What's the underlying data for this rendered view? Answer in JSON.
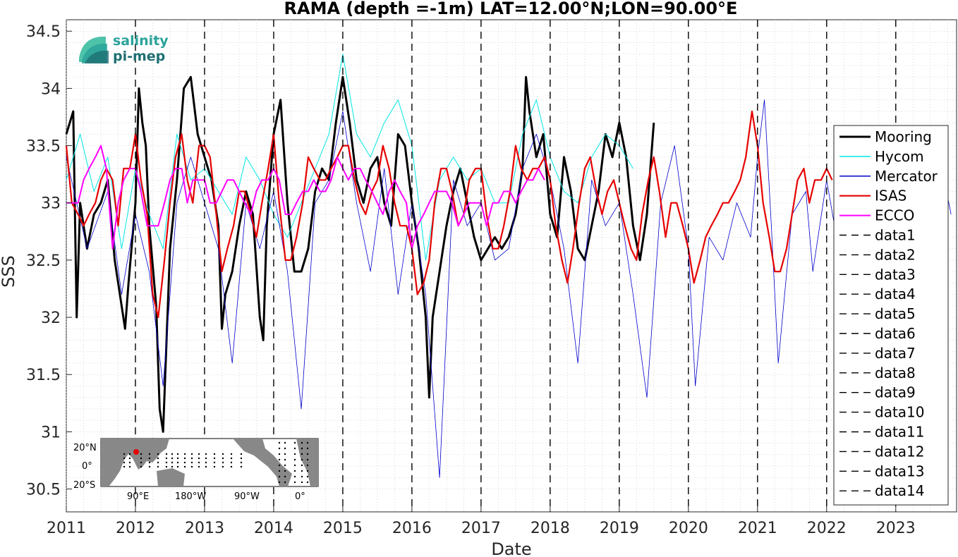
{
  "chart_data": {
    "type": "line",
    "title": "RAMA (depth =-1m) LAT=12.00°N;LON=90.00°E",
    "xlabel": "Date",
    "ylabel": "SSS",
    "xlim": [
      2011.0,
      2023.88
    ],
    "ylim": [
      30.3,
      34.6
    ],
    "x_ticks": [
      "2011",
      "2012",
      "2013",
      "2014",
      "2015",
      "2016",
      "2017",
      "2018",
      "2019",
      "2020",
      "2021",
      "2022",
      "2023"
    ],
    "y_ticks": [
      "30.5",
      "31",
      "31.5",
      "32",
      "32.5",
      "33",
      "33.5",
      "34",
      "34.5"
    ],
    "grid": "minor dotted",
    "legend_position": "right",
    "series": [
      {
        "name": "Mooring",
        "color": "#000000",
        "width": 3,
        "x": [
          2011.0,
          2011.1,
          2011.15,
          2011.2,
          2011.3,
          2011.4,
          2011.5,
          2011.6,
          2011.7,
          2011.8,
          2011.85,
          2011.9,
          2012.0,
          2012.05,
          2012.1,
          2012.15,
          2012.2,
          2012.3,
          2012.35,
          2012.4,
          2012.45,
          2012.5,
          2012.6,
          2012.7,
          2012.8,
          2012.9,
          2013.0,
          2013.1,
          2013.2,
          2013.25,
          2013.3,
          2013.4,
          2013.5,
          2013.6,
          2013.7,
          2013.8,
          2013.85,
          2013.9,
          2014.0,
          2014.1,
          2014.2,
          2014.3,
          2014.4,
          2014.5,
          2014.6,
          2014.7,
          2014.8,
          2014.9,
          2015.0,
          2015.1,
          2015.2,
          2015.3,
          2015.4,
          2015.5,
          2015.6,
          2015.7,
          2015.8,
          2015.9,
          2016.0,
          2016.1,
          2016.2,
          2016.25,
          2016.3,
          2016.4,
          2016.5,
          2016.6,
          2016.7,
          2016.8,
          2016.9,
          2017.0,
          2017.1,
          2017.2,
          2017.3,
          2017.4,
          2017.5,
          2017.6,
          2017.65,
          2017.7,
          2017.8,
          2017.9,
          2018.0,
          2018.1,
          2018.2,
          2018.3,
          2018.4,
          2018.5,
          2018.6,
          2018.7,
          2018.8,
          2018.9,
          2019.0,
          2019.1,
          2019.2,
          2019.3,
          2019.4,
          2019.5
        ],
        "values": [
          33.6,
          33.8,
          32.0,
          33.0,
          32.6,
          32.9,
          33.0,
          33.2,
          32.5,
          32.1,
          31.9,
          32.3,
          33.0,
          34.0,
          33.7,
          33.5,
          32.8,
          32.1,
          31.2,
          31.0,
          31.8,
          32.6,
          33.2,
          34.0,
          34.1,
          33.6,
          33.4,
          33.2,
          32.8,
          31.9,
          32.2,
          32.4,
          32.8,
          33.1,
          32.9,
          32.0,
          31.8,
          32.8,
          33.6,
          33.9,
          33.0,
          32.4,
          32.4,
          32.6,
          33.1,
          33.3,
          33.2,
          33.7,
          34.1,
          33.7,
          33.2,
          33.0,
          33.3,
          33.4,
          33.0,
          32.8,
          33.6,
          33.5,
          33.0,
          32.6,
          32.0,
          31.3,
          32.0,
          32.4,
          32.8,
          33.1,
          33.3,
          33.0,
          32.7,
          32.5,
          32.6,
          32.7,
          32.6,
          32.7,
          32.9,
          33.3,
          34.1,
          33.8,
          33.4,
          33.6,
          32.9,
          32.7,
          33.4,
          33.1,
          32.6,
          32.5,
          32.8,
          33.1,
          33.6,
          33.4,
          33.7,
          33.4,
          32.8,
          32.5,
          32.9,
          33.7
        ]
      },
      {
        "name": "Hycom",
        "color": "#00e5e5",
        "width": 1,
        "x": [
          2011.0,
          2011.2,
          2011.4,
          2011.6,
          2011.8,
          2012.0,
          2012.2,
          2012.4,
          2012.6,
          2012.8,
          2013.0,
          2013.2,
          2013.4,
          2013.6,
          2013.8,
          2014.0,
          2014.2,
          2014.4,
          2014.6,
          2014.8,
          2015.0,
          2015.2,
          2015.4,
          2015.6,
          2015.8,
          2016.0,
          2016.2,
          2016.4,
          2016.6,
          2016.8,
          2017.0,
          2017.2,
          2017.4,
          2017.6,
          2017.8,
          2018.0,
          2018.2,
          2018.4,
          2018.6,
          2018.8,
          2019.0,
          2019.2
        ],
        "values": [
          33.2,
          33.6,
          33.1,
          33.4,
          32.6,
          33.3,
          32.9,
          32.6,
          33.6,
          33.2,
          33.3,
          33.1,
          32.9,
          33.4,
          33.2,
          32.9,
          32.7,
          33.0,
          33.3,
          33.6,
          34.3,
          33.6,
          33.4,
          33.7,
          33.9,
          33.5,
          32.5,
          33.2,
          33.4,
          33.2,
          33.3,
          33.0,
          33.0,
          33.6,
          33.9,
          33.4,
          33.1,
          33.0,
          33.4,
          33.6,
          33.5,
          33.3
        ]
      },
      {
        "name": "Mercator",
        "color": "#0000cc",
        "width": 0.8,
        "x": [
          2011.0,
          2011.3,
          2011.6,
          2011.8,
          2012.0,
          2012.2,
          2012.4,
          2012.6,
          2012.8,
          2013.0,
          2013.2,
          2013.4,
          2013.6,
          2013.8,
          2014.0,
          2014.2,
          2014.4,
          2014.6,
          2014.8,
          2015.0,
          2015.2,
          2015.4,
          2015.6,
          2015.8,
          2016.0,
          2016.2,
          2016.4,
          2016.6,
          2016.8,
          2017.0,
          2017.2,
          2017.4,
          2017.6,
          2017.8,
          2018.0,
          2018.2,
          2018.4,
          2018.6,
          2018.8,
          2019.0,
          2019.2,
          2019.4,
          2019.6,
          2019.8,
          2020.0,
          2020.1,
          2020.3,
          2020.5,
          2020.7,
          2020.9,
          2021.0,
          2021.1,
          2021.2,
          2021.3,
          2021.5,
          2021.7,
          2021.8,
          2022.0,
          2022.2,
          2022.4,
          2022.6,
          2022.8,
          2023.0,
          2023.2,
          2023.4,
          2023.6,
          2023.8
        ],
        "values": [
          33.4,
          32.6,
          33.1,
          32.2,
          32.9,
          32.4,
          31.4,
          33.0,
          33.4,
          33.0,
          32.6,
          31.6,
          33.0,
          32.6,
          33.1,
          32.4,
          31.2,
          33.0,
          33.2,
          33.8,
          33.0,
          32.4,
          33.3,
          32.2,
          33.0,
          32.2,
          30.6,
          33.2,
          32.8,
          33.0,
          32.5,
          32.6,
          33.3,
          33.6,
          33.2,
          32.6,
          31.6,
          33.2,
          32.8,
          33.0,
          32.2,
          31.3,
          33.0,
          33.5,
          32.6,
          31.4,
          32.7,
          32.5,
          33.0,
          32.7,
          33.4,
          33.9,
          32.8,
          31.6,
          32.9,
          33.1,
          32.4,
          33.2,
          32.5,
          33.0,
          33.3,
          32.8,
          33.2,
          32.7,
          33.4,
          33.5,
          32.9
        ]
      },
      {
        "name": "ISAS",
        "color": "#e60000",
        "width": 2.2,
        "x": [
          2011.0,
          2011.08,
          2011.17,
          2011.25,
          2011.33,
          2011.42,
          2011.5,
          2011.58,
          2011.67,
          2011.75,
          2011.83,
          2011.92,
          2012.0,
          2012.08,
          2012.17,
          2012.25,
          2012.33,
          2012.42,
          2012.5,
          2012.58,
          2012.67,
          2012.75,
          2012.83,
          2012.92,
          2013.0,
          2013.08,
          2013.17,
          2013.25,
          2013.33,
          2013.42,
          2013.5,
          2013.58,
          2013.67,
          2013.75,
          2013.83,
          2013.92,
          2014.0,
          2014.08,
          2014.17,
          2014.25,
          2014.33,
          2014.42,
          2014.5,
          2014.58,
          2014.67,
          2014.75,
          2014.83,
          2014.92,
          2015.0,
          2015.08,
          2015.17,
          2015.25,
          2015.33,
          2015.42,
          2015.5,
          2015.58,
          2015.67,
          2015.75,
          2015.83,
          2015.92,
          2016.0,
          2016.08,
          2016.17,
          2016.25,
          2016.33,
          2016.42,
          2016.5,
          2016.58,
          2016.67,
          2016.75,
          2016.83,
          2016.92,
          2017.0,
          2017.08,
          2017.17,
          2017.25,
          2017.33,
          2017.42,
          2017.5,
          2017.58,
          2017.67,
          2017.75,
          2017.83,
          2017.92,
          2018.0,
          2018.08,
          2018.17,
          2018.25,
          2018.33,
          2018.42,
          2018.5,
          2018.58,
          2018.67,
          2018.75,
          2018.83,
          2018.92,
          2019.0,
          2019.08,
          2019.17,
          2019.25,
          2019.33,
          2019.42,
          2019.5,
          2019.58,
          2019.67,
          2019.75,
          2019.83,
          2019.92,
          2020.0,
          2020.08,
          2020.17,
          2020.25,
          2020.33,
          2020.42,
          2020.5,
          2020.58,
          2020.67,
          2020.75,
          2020.83,
          2020.92,
          2021.0,
          2021.08,
          2021.17,
          2021.25,
          2021.33,
          2021.42,
          2021.5,
          2021.58,
          2021.67,
          2021.75,
          2021.83,
          2021.92,
          2022.0,
          2022.08
        ],
        "values": [
          33.5,
          33.0,
          32.9,
          32.8,
          32.9,
          33.0,
          33.2,
          33.3,
          33.2,
          32.8,
          33.3,
          33.3,
          33.6,
          33.2,
          32.9,
          32.2,
          32.0,
          32.5,
          33.0,
          33.4,
          33.6,
          33.2,
          33.0,
          33.5,
          33.5,
          33.4,
          32.9,
          32.4,
          32.6,
          32.8,
          33.1,
          33.1,
          32.9,
          32.7,
          33.0,
          33.3,
          33.6,
          33.0,
          32.5,
          32.5,
          32.7,
          33.0,
          33.4,
          33.3,
          33.2,
          33.2,
          33.3,
          33.4,
          33.5,
          33.5,
          33.2,
          33.0,
          32.9,
          33.1,
          33.2,
          33.5,
          33.3,
          33.0,
          32.8,
          32.8,
          32.6,
          32.2,
          32.3,
          32.5,
          33.0,
          33.3,
          33.3,
          33.1,
          32.8,
          32.9,
          33.2,
          33.3,
          33.3,
          32.9,
          32.6,
          32.6,
          32.8,
          33.1,
          33.5,
          33.3,
          33.2,
          33.3,
          33.3,
          33.4,
          33.2,
          32.8,
          32.5,
          32.3,
          32.6,
          33.0,
          33.3,
          33.4,
          33.1,
          32.9,
          33.1,
          33.2,
          33.0,
          32.8,
          32.6,
          32.5,
          32.9,
          33.2,
          33.4,
          33.1,
          32.7,
          33.0,
          33.0,
          32.8,
          32.6,
          32.3,
          32.5,
          32.7,
          32.8,
          32.9,
          33.0,
          33.0,
          33.1,
          33.2,
          33.4,
          33.8,
          33.5,
          33.0,
          32.7,
          32.4,
          32.4,
          32.6,
          32.9,
          33.2,
          33.3,
          33.0,
          33.2,
          33.2,
          33.3,
          33.2
        ]
      },
      {
        "name": "ECCO",
        "color": "#ff00ff",
        "width": 2,
        "x": [
          2011.0,
          2011.08,
          2011.17,
          2011.25,
          2011.33,
          2011.42,
          2011.5,
          2011.58,
          2011.67,
          2011.75,
          2011.83,
          2011.92,
          2012.0,
          2012.08,
          2012.17,
          2012.25,
          2012.33,
          2012.42,
          2012.5,
          2012.58,
          2012.67,
          2012.75,
          2012.83,
          2012.92,
          2013.0,
          2013.08,
          2013.17,
          2013.25,
          2013.33,
          2013.42,
          2013.5,
          2013.58,
          2013.67,
          2013.75,
          2013.83,
          2013.92,
          2014.0,
          2014.08,
          2014.17,
          2014.25,
          2014.33,
          2014.42,
          2014.5,
          2014.58,
          2014.67,
          2014.75,
          2014.83,
          2014.92,
          2015.0,
          2015.08,
          2015.17,
          2015.25,
          2015.33,
          2015.42,
          2015.5,
          2015.58,
          2015.67,
          2015.75,
          2015.83,
          2015.92,
          2016.0,
          2016.08,
          2016.17,
          2016.25,
          2016.33,
          2016.42,
          2016.5,
          2016.58,
          2016.67,
          2016.75,
          2016.83,
          2016.92,
          2017.0,
          2017.08,
          2017.17,
          2017.25,
          2017.33,
          2017.42,
          2017.5,
          2017.58,
          2017.67,
          2017.75,
          2017.83,
          2017.92
        ],
        "values": [
          33.0,
          33.0,
          33.0,
          33.2,
          33.3,
          33.4,
          33.5,
          33.3,
          32.6,
          33.0,
          33.2,
          33.3,
          33.3,
          33.1,
          32.8,
          32.8,
          32.8,
          33.0,
          33.2,
          33.3,
          33.3,
          33.0,
          33.2,
          33.2,
          33.2,
          33.0,
          33.0,
          33.1,
          33.2,
          33.2,
          33.1,
          33.0,
          32.9,
          33.1,
          33.2,
          33.2,
          33.3,
          33.2,
          32.9,
          32.9,
          33.0,
          33.1,
          33.1,
          33.2,
          33.1,
          33.1,
          33.2,
          33.4,
          33.3,
          33.2,
          33.3,
          33.3,
          33.2,
          33.1,
          33.0,
          32.9,
          33.1,
          33.2,
          33.1,
          33.0,
          32.6,
          32.8,
          32.9,
          33.0,
          33.1,
          33.1,
          33.1,
          33.0,
          32.8,
          32.9,
          33.0,
          33.0,
          33.0,
          32.8,
          33.0,
          33.0,
          33.1,
          33.1,
          33.0,
          33.1,
          33.2,
          33.2,
          33.3,
          33.2
        ]
      },
      {
        "name": "data1",
        "color": "#000000",
        "dashed": true,
        "x_const": 2012
      },
      {
        "name": "data2",
        "color": "#000000",
        "dashed": true,
        "x_const": 2013
      },
      {
        "name": "data3",
        "color": "#000000",
        "dashed": true,
        "x_const": 2014
      },
      {
        "name": "data4",
        "color": "#000000",
        "dashed": true,
        "x_const": 2015
      },
      {
        "name": "data5",
        "color": "#000000",
        "dashed": true,
        "x_const": 2016
      },
      {
        "name": "data6",
        "color": "#000000",
        "dashed": true,
        "x_const": 2017
      },
      {
        "name": "data7",
        "color": "#000000",
        "dashed": true,
        "x_const": 2018
      },
      {
        "name": "data8",
        "color": "#000000",
        "dashed": true,
        "x_const": 2019
      },
      {
        "name": "data9",
        "color": "#000000",
        "dashed": true,
        "x_const": 2020
      },
      {
        "name": "data10",
        "color": "#000000",
        "dashed": true,
        "x_const": 2021
      },
      {
        "name": "data11",
        "color": "#000000",
        "dashed": true,
        "x_const": 2022
      },
      {
        "name": "data12",
        "color": "#000000",
        "dashed": true,
        "x_const": 2023
      },
      {
        "name": "data13",
        "color": "#000000",
        "dashed": true
      },
      {
        "name": "data14",
        "color": "#000000",
        "dashed": true
      }
    ]
  },
  "logo": {
    "line1": "salinity",
    "line2": "pi-mep"
  },
  "inset_map": {
    "lat_ticks": [
      "20°N",
      "0°",
      "20°S"
    ],
    "lon_ticks": [
      "90°E",
      "180°W",
      "90°W",
      "0°"
    ],
    "marker_color": "#e60000"
  }
}
